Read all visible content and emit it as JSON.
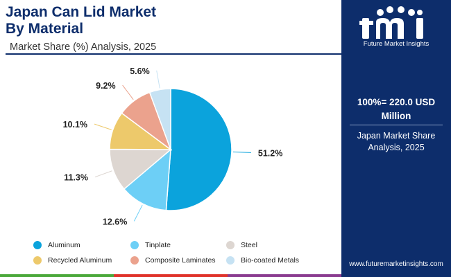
{
  "header": {
    "title_line1": "Japan Can Lid Market",
    "title_line2": "By Material",
    "subtitle": "Market Share (%) Analysis, 2025"
  },
  "chart_data": {
    "type": "pie",
    "title": "Japan Can Lid Market By Material",
    "subtitle": "Market Share (%) Analysis, 2025",
    "categories": [
      "Aluminum",
      "Tinplate",
      "Steel",
      "Recycled Aluminum",
      "Composite Laminates",
      "Bio-coated Metals"
    ],
    "values": [
      51.2,
      12.6,
      11.3,
      10.1,
      9.2,
      5.6
    ],
    "labels": [
      "51.2%",
      "12.6%",
      "11.3%",
      "10.1%",
      "9.2%",
      "5.6%"
    ],
    "colors": [
      "#0ba3dc",
      "#6dcff6",
      "#ddd6d1",
      "#edc96b",
      "#eba28d",
      "#c6e2f3"
    ],
    "legend_position": "bottom"
  },
  "sidebar": {
    "logo_text": "Future Market Insights",
    "total_line1": "100%= 220.0 USD",
    "total_line2": "Million",
    "share_line1": "Japan Market Share",
    "share_line2": "Analysis, 2025",
    "website": "www.futuremarketinsights.com"
  },
  "bottom_bar_colors": [
    "#4aa83a",
    "#e0322a",
    "#8a3b8f"
  ]
}
